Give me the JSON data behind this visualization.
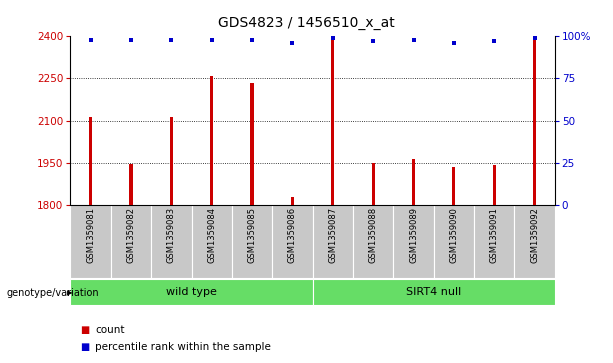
{
  "title": "GDS4823 / 1456510_x_at",
  "samples": [
    "GSM1359081",
    "GSM1359082",
    "GSM1359083",
    "GSM1359084",
    "GSM1359085",
    "GSM1359086",
    "GSM1359087",
    "GSM1359088",
    "GSM1359089",
    "GSM1359090",
    "GSM1359091",
    "GSM1359092"
  ],
  "counts": [
    2113,
    1946,
    2112,
    2258,
    2235,
    1827,
    2395,
    1950,
    1963,
    1937,
    1942,
    2390
  ],
  "percentile_ranks": [
    98,
    98,
    98,
    98,
    98,
    96,
    99,
    97,
    98,
    96,
    97,
    99
  ],
  "bar_color": "#CC0000",
  "dot_color": "#0000CC",
  "ylim_left": [
    1800,
    2400
  ],
  "ylim_right": [
    0,
    100
  ],
  "yticks_left": [
    1800,
    1950,
    2100,
    2250,
    2400
  ],
  "yticks_right": [
    0,
    25,
    50,
    75,
    100
  ],
  "grid_values": [
    1950,
    2100,
    2250
  ],
  "background_color": "#ffffff",
  "bar_width": 0.08,
  "group1_name": "wild type",
  "group2_name": "SIRT4 null",
  "group_color": "#66DD66",
  "sample_box_color": "#C8C8C8",
  "genotype_label": "genotype/variation",
  "legend_count_label": "count",
  "legend_percentile_label": "percentile rank within the sample",
  "title_fontsize": 10,
  "tick_fontsize": 7.5,
  "sample_fontsize": 6,
  "group_fontsize": 8,
  "legend_fontsize": 7.5
}
